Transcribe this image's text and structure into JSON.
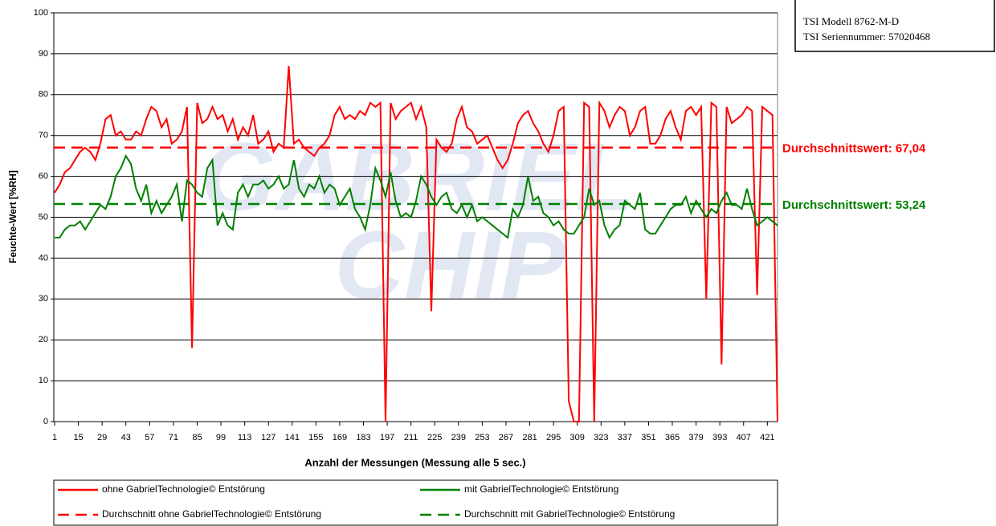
{
  "chart_data": {
    "type": "line",
    "watermark": [
      "GABRIEL",
      "CHIP"
    ],
    "device_info": [
      "TSI Modell 8762-M-D",
      "TSI Seriennummer: 57020468"
    ],
    "xlabel": "Anzahl der Messungen (Messung alle 5 sec.)",
    "ylabel": "Feuchte-Wert [%RH]",
    "xlim": [
      1,
      427
    ],
    "ylim": [
      0,
      100
    ],
    "yticks": [
      0,
      10,
      20,
      30,
      40,
      50,
      60,
      70,
      80,
      90,
      100
    ],
    "xticks": [
      1,
      15,
      29,
      43,
      57,
      71,
      85,
      99,
      113,
      127,
      141,
      155,
      169,
      183,
      197,
      211,
      225,
      239,
      253,
      267,
      281,
      295,
      309,
      323,
      337,
      351,
      365,
      379,
      393,
      407,
      421
    ],
    "grid": true,
    "x": [
      1,
      4,
      7,
      10,
      13,
      16,
      19,
      22,
      25,
      28,
      31,
      34,
      37,
      40,
      43,
      46,
      49,
      52,
      55,
      58,
      61,
      64,
      67,
      70,
      73,
      76,
      79,
      82,
      85,
      88,
      91,
      94,
      97,
      100,
      103,
      106,
      109,
      112,
      115,
      118,
      121,
      124,
      127,
      130,
      133,
      136,
      139,
      142,
      145,
      148,
      151,
      154,
      157,
      160,
      163,
      166,
      169,
      172,
      175,
      178,
      181,
      184,
      187,
      190,
      193,
      196,
      199,
      202,
      205,
      208,
      211,
      214,
      217,
      220,
      223,
      226,
      229,
      232,
      235,
      238,
      241,
      244,
      247,
      250,
      253,
      256,
      259,
      262,
      265,
      268,
      271,
      274,
      277,
      280,
      283,
      286,
      289,
      292,
      295,
      298,
      301,
      304,
      307,
      310,
      313,
      316,
      319,
      322,
      325,
      328,
      331,
      334,
      337,
      340,
      343,
      346,
      349,
      352,
      355,
      358,
      361,
      364,
      367,
      370,
      373,
      376,
      379,
      382,
      385,
      388,
      391,
      394,
      397,
      400,
      403,
      406,
      409,
      412,
      415,
      418,
      421,
      424,
      427
    ],
    "series": [
      {
        "name": "ohne GabrielTechnologie© Entstörung",
        "color": "#ff0000",
        "values": [
          56,
          58,
          61,
          62,
          64,
          66,
          67,
          66,
          64,
          68,
          74,
          75,
          70,
          71,
          69,
          69,
          71,
          70,
          74,
          77,
          76,
          72,
          74,
          68,
          69,
          71,
          77,
          18,
          78,
          73,
          74,
          77,
          74,
          75,
          71,
          74,
          69,
          72,
          70,
          75,
          68,
          69,
          71,
          66,
          68,
          67,
          87,
          68,
          69,
          67,
          66,
          65,
          67,
          68,
          70,
          75,
          77,
          74,
          75,
          74,
          76,
          75,
          78,
          77,
          78,
          0,
          78,
          74,
          76,
          77,
          78,
          74,
          77,
          72,
          27,
          69,
          67,
          66,
          68,
          74,
          77,
          72,
          71,
          68,
          69,
          70,
          67,
          64,
          62,
          64,
          68,
          73,
          75,
          76,
          73,
          71,
          68,
          66,
          70,
          76,
          77,
          5,
          0,
          0,
          78,
          77,
          0,
          78,
          76,
          72,
          75,
          77,
          76,
          70,
          72,
          76,
          77,
          68,
          68,
          70,
          74,
          76,
          72,
          69,
          76,
          77,
          75,
          77,
          30,
          78,
          77,
          14,
          77,
          73,
          74,
          75,
          77,
          76,
          31,
          77,
          76,
          75,
          0
        ]
      },
      {
        "name": "mit GabrielTechnologie© Entstörung",
        "color": "#008000",
        "values": [
          45,
          45,
          47,
          48,
          48,
          49,
          47,
          49,
          51,
          53,
          52,
          55,
          60,
          62,
          65,
          63,
          57,
          54,
          58,
          51,
          54,
          51,
          53,
          55,
          58,
          49,
          59,
          58,
          56,
          55,
          62,
          64,
          48,
          51,
          48,
          47,
          56,
          58,
          55,
          58,
          58,
          59,
          57,
          58,
          60,
          57,
          58,
          64,
          57,
          55,
          58,
          57,
          60,
          56,
          58,
          57,
          53,
          55,
          57,
          52,
          50,
          47,
          53,
          62,
          59,
          55,
          61,
          54,
          50,
          51,
          50,
          54,
          60,
          58,
          55,
          53,
          55,
          56,
          52,
          51,
          53,
          50,
          53,
          49,
          50,
          49,
          48,
          47,
          46,
          45,
          52,
          50,
          53,
          60,
          54,
          55,
          51,
          50,
          48,
          49,
          47,
          46,
          46,
          48,
          50,
          57,
          53,
          54,
          48,
          45,
          47,
          48,
          54,
          53,
          52,
          56,
          47,
          46,
          46,
          48,
          50,
          52,
          53,
          53,
          55,
          51,
          54,
          52,
          50,
          52,
          51,
          54,
          56,
          53,
          53,
          52,
          57,
          52,
          48,
          49,
          50,
          49,
          48
        ]
      },
      {
        "name": "Durchschnitt ohne GabrielTechnologie© Entstörung",
        "color": "#ff0000",
        "dashed": true,
        "value": 67.04,
        "label": "Durchschnittswert: 67,04"
      },
      {
        "name": "Durchschnitt mit GabrielTechnologie© Entstörung",
        "color": "#008000",
        "dashed": true,
        "value": 53.24,
        "label": "Durchschnittswert: 53,24"
      }
    ]
  }
}
